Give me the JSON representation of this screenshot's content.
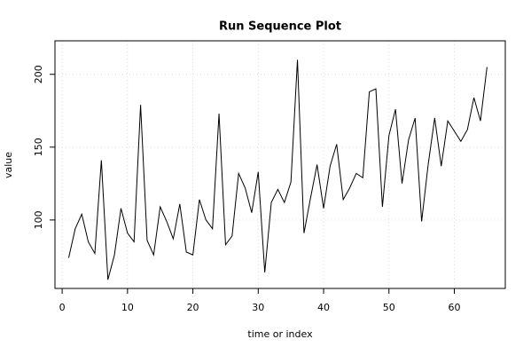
{
  "chart_data": {
    "type": "line",
    "title": "Run Sequence Plot",
    "x_label": "time or index",
    "y_label": "value",
    "x": [
      1,
      2,
      3,
      4,
      5,
      6,
      7,
      8,
      9,
      10,
      11,
      12,
      13,
      14,
      15,
      16,
      17,
      18,
      19,
      20,
      21,
      22,
      23,
      24,
      25,
      26,
      27,
      28,
      29,
      30,
      31,
      32,
      33,
      34,
      35,
      36,
      37,
      38,
      39,
      40,
      41,
      42,
      43,
      44,
      45,
      46,
      47,
      48,
      49,
      50,
      51,
      52,
      53,
      54,
      55,
      56,
      57,
      58,
      59,
      60,
      61,
      62,
      63,
      64,
      65
    ],
    "values": [
      74,
      94,
      104,
      85,
      77,
      141,
      59,
      76,
      108,
      91,
      85,
      179,
      86,
      76,
      109,
      99,
      87,
      111,
      78,
      76,
      114,
      100,
      94,
      173,
      83,
      89,
      132,
      122,
      105,
      133,
      64,
      112,
      121,
      112,
      126,
      210,
      91,
      115,
      138,
      108,
      137,
      152,
      114,
      122,
      132,
      129,
      188,
      190,
      109,
      158,
      176,
      125,
      155,
      170,
      99,
      138,
      170,
      137,
      168,
      161,
      154,
      162,
      184,
      168,
      205
    ],
    "color": "#000000",
    "xlim": [
      -1.1,
      67.8
    ],
    "ylim": [
      53,
      223
    ],
    "xticks": [
      0,
      10,
      20,
      30,
      40,
      50,
      60
    ],
    "yticks": [
      100,
      150,
      200
    ],
    "grid": true
  }
}
